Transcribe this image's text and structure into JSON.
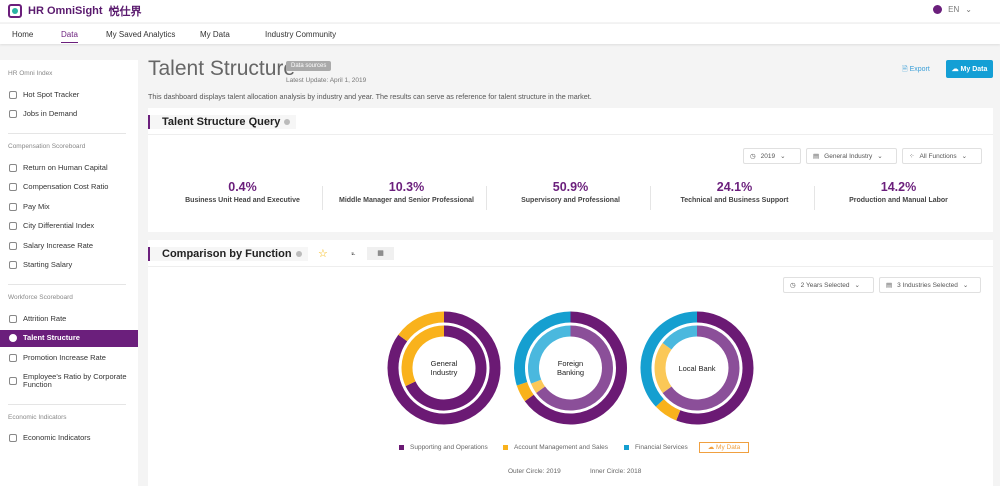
{
  "header": {
    "brand": "HR OmniSight",
    "brand_cn": "悦仕界",
    "language": "EN"
  },
  "nav": [
    "Home",
    "Data",
    "My Saved Analytics",
    "My Data",
    "Industry Community"
  ],
  "nav_active": "Data",
  "sidebar": {
    "sections": [
      {
        "title": "HR Omni Index",
        "items": [
          "Hot Spot Tracker",
          "Jobs in Demand"
        ]
      },
      {
        "title": "Compensation Scoreboard",
        "items": [
          "Return on Human Capital",
          "Compensation Cost Ratio",
          "Pay Mix",
          "City Differential Index",
          "Salary Increase Rate",
          "Starting Salary"
        ]
      },
      {
        "title": "Workforce Scoreboard",
        "items": [
          "Attrition Rate",
          "Talent Structure",
          "Promotion Increase Rate",
          "Employee's Ratio by Corporate Function"
        ]
      },
      {
        "title": "Economic Indicators",
        "items": [
          "Economic Indicators"
        ]
      }
    ],
    "active": "Talent Structure"
  },
  "page": {
    "title": "Talent Structure",
    "badge": "Data sources",
    "update": "Latest Update:  April 1, 2019",
    "description": "This dashboard displays talent allocation analysis by industry and year. The results can serve as reference for talent structure in the market.",
    "export": "Export",
    "my_data": "My Data"
  },
  "query": {
    "title": "Talent Structure Query",
    "filters": {
      "year": "2019",
      "industry": "General Industry",
      "functions": "All Functions"
    },
    "stats": [
      {
        "value": "0.4%",
        "label": "Business Unit Head and Executive"
      },
      {
        "value": "10.3%",
        "label": "Middle Manager and Senior Professional"
      },
      {
        "value": "50.9%",
        "label": "Supervisory and Professional"
      },
      {
        "value": "24.1%",
        "label": "Technical and Business Support"
      },
      {
        "value": "14.2%",
        "label": "Production and Manual Labor"
      }
    ]
  },
  "comparison": {
    "title": "Comparison by Function",
    "toggle_line": "⟀",
    "toggle_table": "▦",
    "filters": {
      "years": "2 Years Selected",
      "industries": "3 Industries Selected"
    },
    "legend": [
      "Supporting and Operations",
      "Account Management and Sales",
      "Financial Services"
    ],
    "my_data": "My Data",
    "outer_note": "Outer Circle:  2019",
    "inner_note": "Inner Circle:  2018"
  },
  "chart_data": {
    "type": "pie",
    "variant": "nested-donut",
    "series_names": [
      "Supporting and Operations",
      "Account Management and Sales",
      "Financial Services"
    ],
    "colors": [
      "#6b1a74",
      "#f9b21c",
      "#159fd0"
    ],
    "charts": [
      {
        "label": "General Industry",
        "outer_2019": [
          85,
          15,
          0
        ],
        "inner_2018": [
          68,
          32,
          0
        ]
      },
      {
        "label": "Foreign Banking",
        "outer_2019": [
          65,
          5,
          30
        ],
        "inner_2018": [
          65,
          4,
          31
        ]
      },
      {
        "label": "Local Bank",
        "outer_2019": [
          56,
          7,
          37
        ],
        "inner_2018": [
          65,
          20,
          15
        ]
      }
    ]
  }
}
